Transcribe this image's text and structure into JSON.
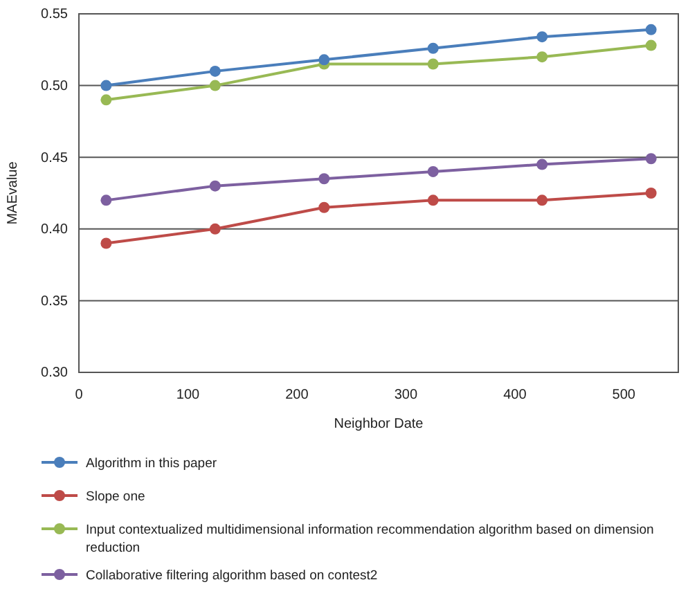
{
  "chart_data": {
    "type": "line",
    "xlabel": "Neighbor Date",
    "ylabel": "MAEvalue",
    "x": [
      25,
      125,
      225,
      325,
      425,
      525
    ],
    "xlim": [
      0,
      550
    ],
    "xticks": [
      0,
      100,
      200,
      300,
      400,
      500
    ],
    "ylim": [
      0.3,
      0.55
    ],
    "yticks": [
      {
        "value": 0.3,
        "label": "0.30"
      },
      {
        "value": 0.35,
        "label": "0.35"
      },
      {
        "value": 0.4,
        "label": "0.40"
      },
      {
        "value": 0.45,
        "label": "0.45"
      },
      {
        "value": 0.5,
        "label": "0.50"
      },
      {
        "value": 0.55,
        "label": "0.55"
      }
    ],
    "grid": "y",
    "legend": "bottom",
    "marker": "circle",
    "line_style": "solid",
    "series": [
      {
        "name": "Algorithm in this paper",
        "color": "#4a7ebb",
        "values": [
          0.5,
          0.51,
          0.518,
          0.526,
          0.534,
          0.539
        ]
      },
      {
        "name": "Slope one",
        "color": "#be4b48",
        "values": [
          0.39,
          0.4,
          0.415,
          0.42,
          0.42,
          0.425
        ]
      },
      {
        "name": "Input contextualized multidimensional information recommendation algorithm based on dimension reduction",
        "color": "#98b954",
        "values": [
          0.49,
          0.5,
          0.515,
          0.515,
          0.52,
          0.528
        ]
      },
      {
        "name": "Collaborative filtering algorithm based on contest2",
        "color": "#7d60a0",
        "values": [
          0.42,
          0.43,
          0.435,
          0.44,
          0.445,
          0.449
        ]
      }
    ]
  }
}
